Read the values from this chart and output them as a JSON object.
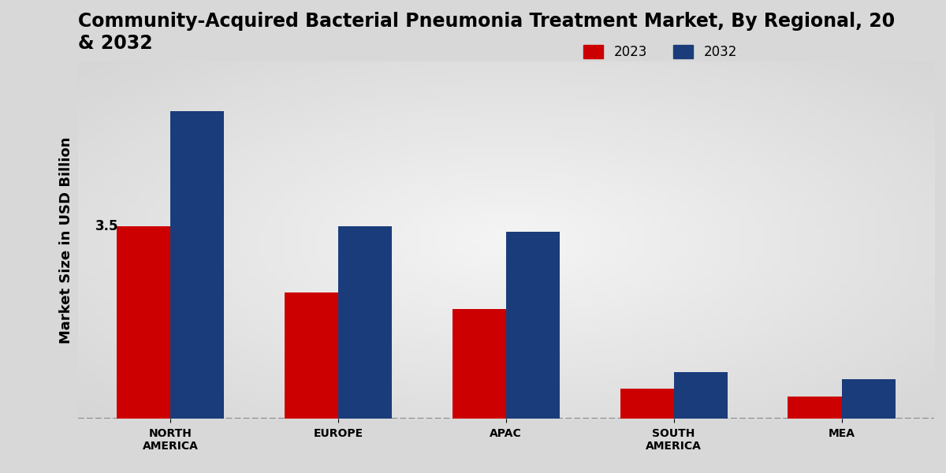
{
  "title": "Community-Acquired Bacterial Pneumonia Treatment Market, By Regional, 20\n& 2032",
  "ylabel": "Market Size in USD Billion",
  "categories": [
    "NORTH\nAMERICA",
    "EUROPE",
    "APAC",
    "SOUTH\nAMERICA",
    "MEA"
  ],
  "values_2023": [
    3.5,
    2.3,
    2.0,
    0.55,
    0.4
  ],
  "values_2032": [
    5.6,
    3.5,
    3.4,
    0.85,
    0.72
  ],
  "color_2023": "#cc0000",
  "color_2032": "#1a3c7a",
  "annotation_value": "3.5",
  "annotation_region_index": 0,
  "legend_labels": [
    "2023",
    "2032"
  ],
  "background_color": "#e0e0e0",
  "bar_width": 0.32,
  "ylim": [
    0,
    6.5
  ],
  "title_fontsize": 17,
  "label_fontsize": 13,
  "tick_fontsize": 10,
  "legend_fontsize": 12
}
